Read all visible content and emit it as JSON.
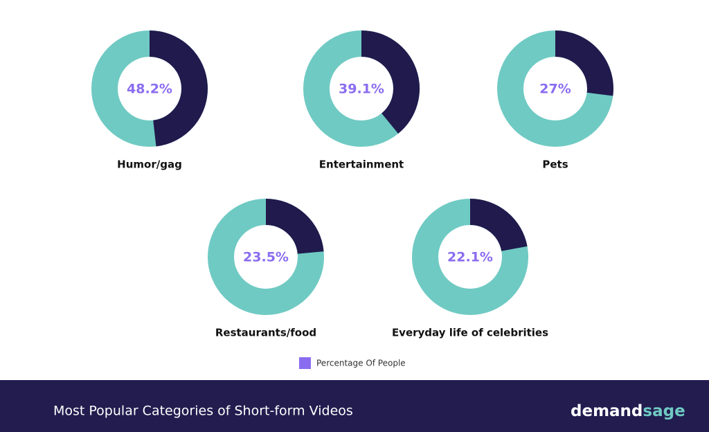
{
  "chart_data": [
    {
      "type": "donut",
      "title": "Humor/gag",
      "values": [
        48.2
      ],
      "value_labels": [
        "48.2%"
      ],
      "ylim": [
        0,
        100
      ],
      "color": "#201a4d",
      "rest_color": "#6fcac3",
      "label_color": "#8a6cf0"
    },
    {
      "type": "donut",
      "title": "Entertainment",
      "values": [
        39.1
      ],
      "value_labels": [
        "39.1%"
      ],
      "ylim": [
        0,
        100
      ],
      "color": "#201a4d",
      "rest_color": "#6fcac3",
      "label_color": "#8a6cf0"
    },
    {
      "type": "donut",
      "title": "Pets",
      "values": [
        27
      ],
      "value_labels": [
        "27%"
      ],
      "ylim": [
        0,
        100
      ],
      "color": "#201a4d",
      "rest_color": "#6fcac3",
      "label_color": "#8a6cf0"
    },
    {
      "type": "donut",
      "title": "Restaurants/food",
      "values": [
        23.5
      ],
      "value_labels": [
        "23.5%"
      ],
      "ylim": [
        0,
        100
      ],
      "color": "#201a4d",
      "rest_color": "#6fcac3",
      "label_color": "#8a6cf0"
    },
    {
      "type": "donut",
      "title": "Everyday life of celebrities",
      "values": [
        22.1
      ],
      "value_labels": [
        "22.1%"
      ],
      "ylim": [
        0,
        100
      ],
      "color": "#201a4d",
      "rest_color": "#6fcac3",
      "label_color": "#8a6cf0"
    }
  ],
  "legend": {
    "name": "Percentage Of People",
    "color": "#8a6cf0"
  },
  "footer": {
    "title": "Most Popular Categories of Short-form Videos",
    "brand": [
      "demand",
      "sage"
    ]
  }
}
